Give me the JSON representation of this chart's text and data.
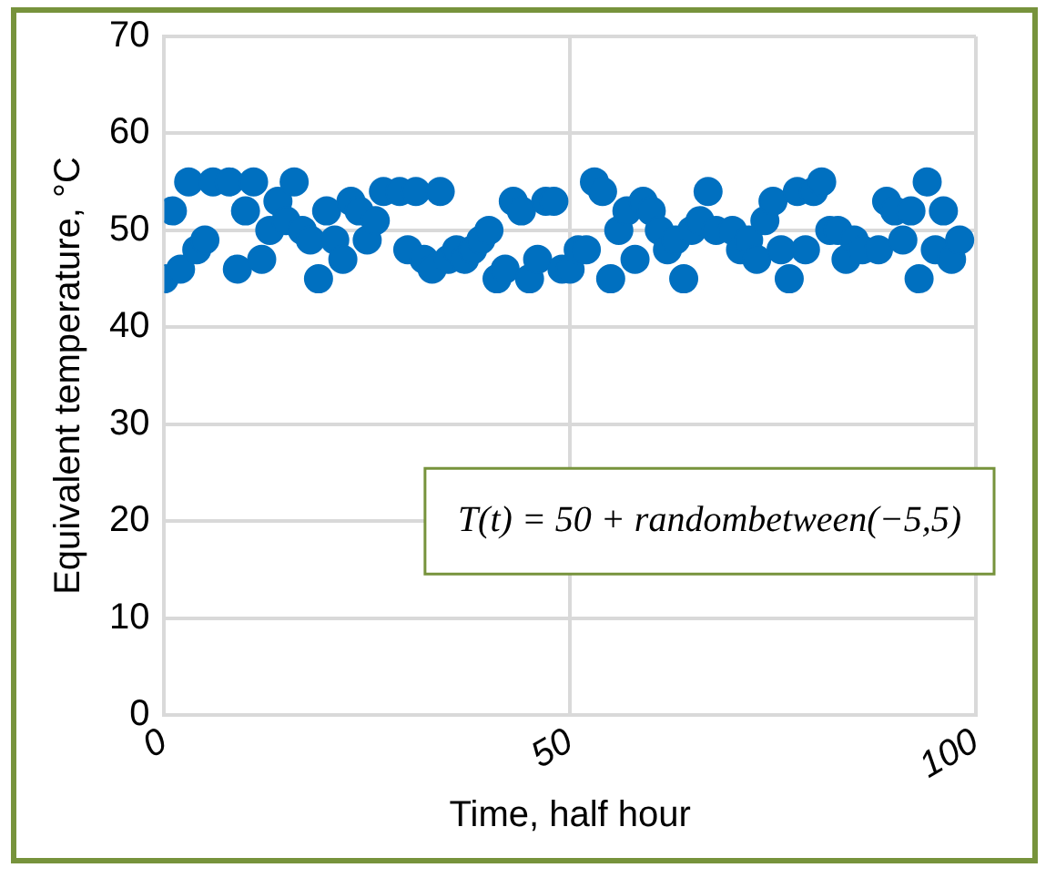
{
  "chart_data": {
    "type": "scatter",
    "xlabel": "Time, half hour",
    "ylabel": "Equivalent temperature, °C",
    "x": [
      0,
      1,
      2,
      3,
      4,
      5,
      6,
      7,
      8,
      9,
      10,
      11,
      12,
      13,
      14,
      15,
      16,
      17,
      18,
      19,
      20,
      21,
      22,
      23,
      24,
      25,
      26,
      27,
      28,
      29,
      30,
      31,
      32,
      33,
      34,
      35,
      36,
      37,
      38,
      39,
      40,
      41,
      42,
      43,
      44,
      45,
      46,
      47,
      48,
      49,
      50,
      51,
      52,
      53,
      54,
      55,
      56,
      57,
      58,
      59,
      60,
      61,
      62,
      63,
      64,
      65,
      66,
      67,
      68,
      69,
      70,
      71,
      72,
      73,
      74,
      75,
      76,
      77,
      78,
      79,
      80,
      81,
      82,
      83,
      84,
      85,
      86,
      87,
      88,
      89,
      90,
      91,
      92,
      93,
      94,
      95,
      96,
      97,
      98
    ],
    "series": [
      {
        "color": "#0070c0",
        "values": [
          45,
          52,
          46,
          55,
          48,
          49,
          55,
          null,
          55,
          46,
          52,
          55,
          47,
          50,
          53,
          51,
          55,
          50,
          49,
          45,
          52,
          49,
          47,
          53,
          52,
          49,
          51,
          54,
          null,
          54,
          48,
          54,
          47,
          46,
          54,
          47,
          48,
          47,
          48,
          49,
          50,
          45,
          46,
          53,
          52,
          45,
          47,
          53,
          53,
          46,
          46,
          48,
          48,
          55,
          54,
          45,
          50,
          52,
          47,
          53,
          52,
          50,
          48,
          49,
          45,
          50,
          51,
          54,
          50,
          null,
          50,
          48,
          49,
          47,
          51,
          53,
          48,
          45,
          54,
          48,
          54,
          55,
          50,
          50,
          47,
          49,
          48,
          null,
          48,
          53,
          52,
          49,
          52,
          45,
          55,
          48,
          52,
          47,
          49
        ]
      }
    ],
    "xlim": [
      0,
      100
    ],
    "xticks": [
      0,
      50,
      100
    ],
    "ylim": [
      0,
      70
    ],
    "yticks": [
      0,
      10,
      20,
      30,
      40,
      50,
      60,
      70
    ],
    "grid": true,
    "legend": false,
    "marker": "circle",
    "annotations": [
      "T(t) = 50 + randombetween(−5,5)"
    ]
  }
}
